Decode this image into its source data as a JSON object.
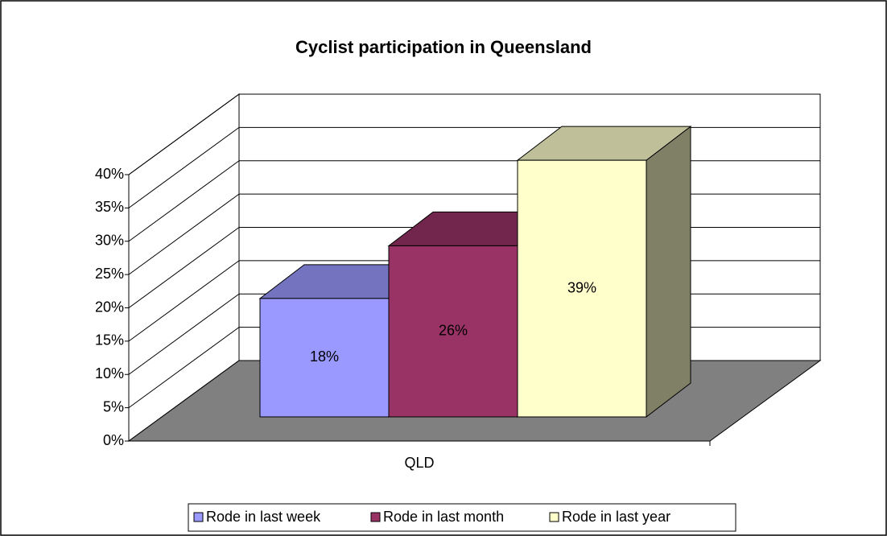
{
  "chart_data": {
    "type": "bar3d",
    "title": "Cyclist participation in Queensland",
    "categories": [
      "QLD"
    ],
    "series": [
      {
        "name": "Rode in last week",
        "color": "#9999ff",
        "values": [
          18
        ],
        "value_labels": [
          "18%"
        ]
      },
      {
        "name": "Rode in last month",
        "color": "#993366",
        "values": [
          26
        ],
        "value_labels": [
          "26%"
        ]
      },
      {
        "name": "Rode in last year",
        "color": "#ffffcc",
        "values": [
          39
        ],
        "value_labels": [
          "39%"
        ]
      }
    ],
    "ylim": [
      0,
      40
    ],
    "yticks": [
      {
        "value": 0,
        "label": "0%"
      },
      {
        "value": 5,
        "label": "5%"
      },
      {
        "value": 10,
        "label": "10%"
      },
      {
        "value": 15,
        "label": "15%"
      },
      {
        "value": 20,
        "label": "20%"
      },
      {
        "value": 25,
        "label": "25%"
      },
      {
        "value": 30,
        "label": "30%"
      },
      {
        "value": 35,
        "label": "35%"
      },
      {
        "value": 40,
        "label": "40%"
      }
    ],
    "grid": true,
    "legend": "bottom"
  }
}
